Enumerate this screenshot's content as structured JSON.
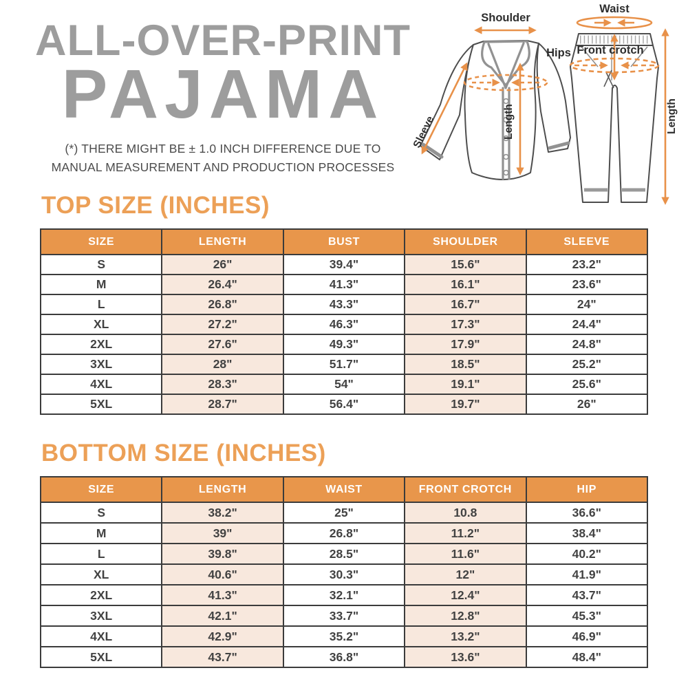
{
  "header": {
    "title_line1": "ALL-OVER-PRINT",
    "title_line2": "PAJAMA",
    "disclaimer_line1": "(*) THERE MIGHT BE ± 1.0 INCH DIFFERENCE DUE TO",
    "disclaimer_line2": "MANUAL MEASUREMENT AND PRODUCTION PROCESSES"
  },
  "diagram": {
    "shoulder_label": "Shoulder",
    "sleeve_label": "Sleeve",
    "top_length_label": "Length",
    "waist_label": "Waist",
    "hips_label": "Hips",
    "front_crotch_label": "Front crotch",
    "bottom_length_label": "Length"
  },
  "colors": {
    "accent_orange": "#E8964B",
    "heading_orange": "#ECA057",
    "arrow_orange": "#E89149",
    "shaded_cell": "#F8E8DD",
    "title_gray": "#9d9d9d",
    "text_dark": "#424242"
  },
  "top_table": {
    "title": "TOP SIZE (INCHES)",
    "columns": [
      "SIZE",
      "LENGTH",
      "BUST",
      "SHOULDER",
      "SLEEVE"
    ],
    "rows": [
      [
        "S",
        "26\"",
        "39.4\"",
        "15.6\"",
        "23.2\""
      ],
      [
        "M",
        "26.4\"",
        "41.3\"",
        "16.1\"",
        "23.6\""
      ],
      [
        "L",
        "26.8\"",
        "43.3\"",
        "16.7\"",
        "24\""
      ],
      [
        "XL",
        "27.2\"",
        "46.3\"",
        "17.3\"",
        "24.4\""
      ],
      [
        "2XL",
        "27.6\"",
        "49.3\"",
        "17.9\"",
        "24.8\""
      ],
      [
        "3XL",
        "28\"",
        "51.7\"",
        "18.5\"",
        "25.2\""
      ],
      [
        "4XL",
        "28.3\"",
        "54\"",
        "19.1\"",
        "25.6\""
      ],
      [
        "5XL",
        "28.7\"",
        "56.4\"",
        "19.7\"",
        "26\""
      ]
    ]
  },
  "bottom_table": {
    "title": "BOTTOM SIZE (INCHES)",
    "columns": [
      "SIZE",
      "LENGTH",
      "WAIST",
      "FRONT CROTCH",
      "HIP"
    ],
    "rows": [
      [
        "S",
        "38.2\"",
        "25\"",
        "10.8",
        "36.6\""
      ],
      [
        "M",
        "39\"",
        "26.8\"",
        "11.2\"",
        "38.4\""
      ],
      [
        "L",
        "39.8\"",
        "28.5\"",
        "11.6\"",
        "40.2\""
      ],
      [
        "XL",
        "40.6\"",
        "30.3\"",
        "12\"",
        "41.9\""
      ],
      [
        "2XL",
        "41.3\"",
        "32.1\"",
        "12.4\"",
        "43.7\""
      ],
      [
        "3XL",
        "42.1\"",
        "33.7\"",
        "12.8\"",
        "45.3\""
      ],
      [
        "4XL",
        "42.9\"",
        "35.2\"",
        "13.2\"",
        "46.9\""
      ],
      [
        "5XL",
        "43.7\"",
        "36.8\"",
        "13.6\"",
        "48.4\""
      ]
    ]
  }
}
